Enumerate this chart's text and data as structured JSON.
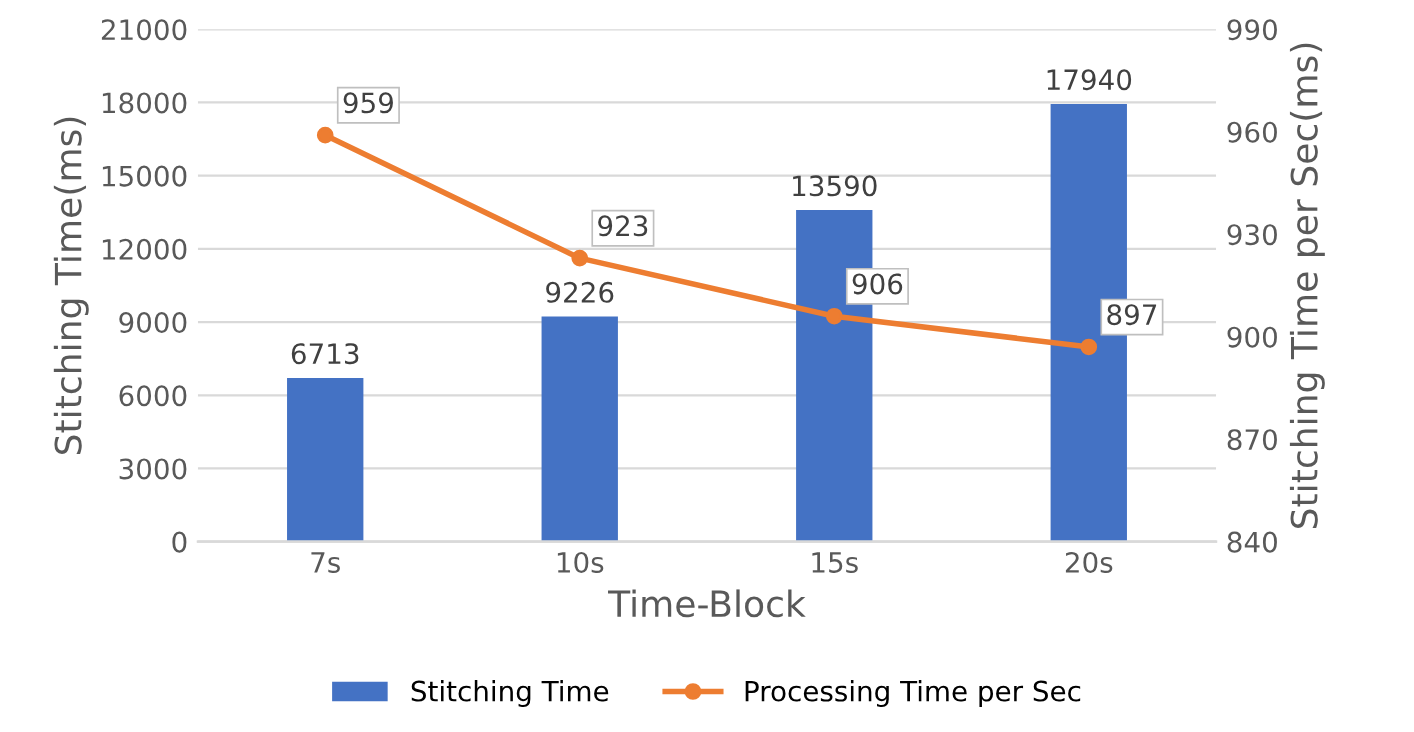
{
  "chart_data": {
    "type": "bar",
    "xlabel": "Time-Block",
    "ylabel": "Stitching Time(ms)",
    "y2label": "Stitching Time per Sec(ms)",
    "categories": [
      "7s",
      "10s",
      "15s",
      "20s"
    ],
    "series": [
      {
        "name": "Stitching Time",
        "color": "#4472c4",
        "values": [
          6713,
          9226,
          13590,
          17940
        ]
      },
      {
        "name": "Processing Time per Sec",
        "type": "line",
        "axis": "y2",
        "color": "#ed7d31",
        "marker": "circle",
        "values": [
          959,
          923,
          906,
          897
        ]
      }
    ],
    "ylim": [
      0,
      21000
    ],
    "yticks": [
      0,
      3000,
      6000,
      9000,
      12000,
      15000,
      18000,
      21000
    ],
    "y2lim": [
      840,
      990
    ],
    "y2ticks": [
      840,
      870,
      900,
      930,
      960,
      990
    ],
    "grid": "y",
    "legend": "bottom",
    "data_labels": true
  }
}
